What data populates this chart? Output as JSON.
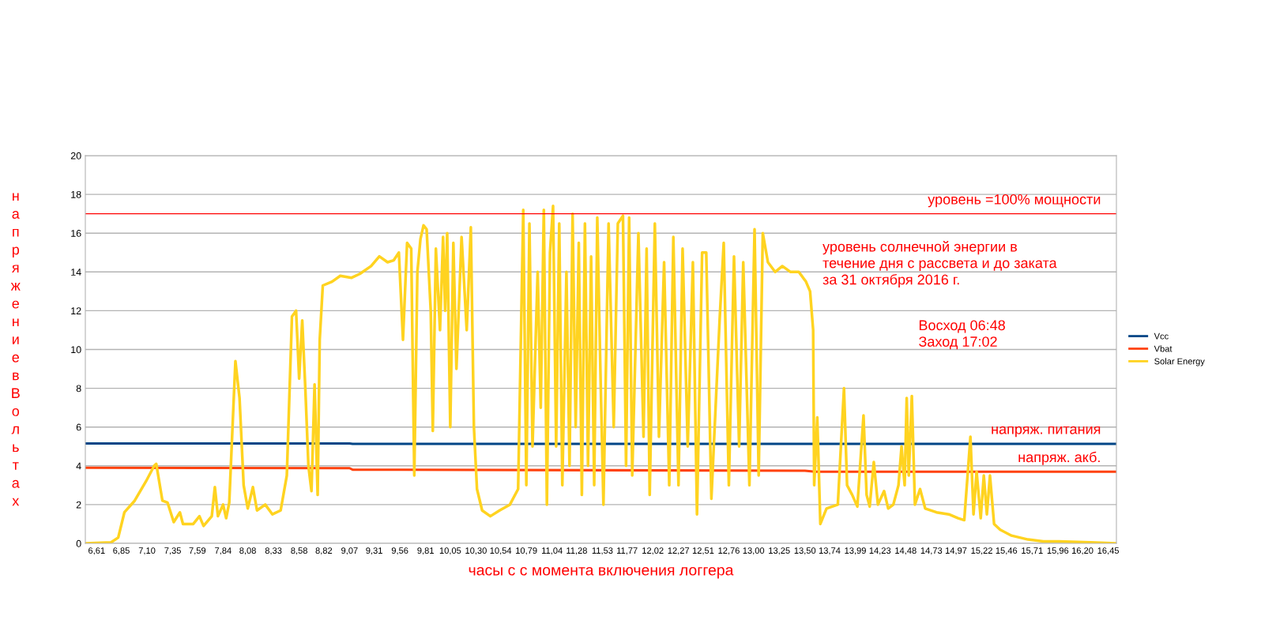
{
  "chart_data": {
    "type": "line",
    "xlabel": "часы с с момента включения логгера",
    "ylabel": "напряжение в Вольтах",
    "xlim": [
      6.5,
      16.53
    ],
    "xticks": [
      {
        "value": 6.61,
        "label": "6,61"
      },
      {
        "value": 6.85,
        "label": "6,85"
      },
      {
        "value": 7.1,
        "label": "7,10"
      },
      {
        "value": 7.35,
        "label": "7,35"
      },
      {
        "value": 7.59,
        "label": "7,59"
      },
      {
        "value": 7.84,
        "label": "7,84"
      },
      {
        "value": 8.08,
        "label": "8,08"
      },
      {
        "value": 8.33,
        "label": "8,33"
      },
      {
        "value": 8.58,
        "label": "8,58"
      },
      {
        "value": 8.82,
        "label": "8,82"
      },
      {
        "value": 9.07,
        "label": "9,07"
      },
      {
        "value": 9.31,
        "label": "9,31"
      },
      {
        "value": 9.56,
        "label": "9,56"
      },
      {
        "value": 9.81,
        "label": "9,81"
      },
      {
        "value": 10.05,
        "label": "10,05"
      },
      {
        "value": 10.3,
        "label": "10,30"
      },
      {
        "value": 10.54,
        "label": "10,54"
      },
      {
        "value": 10.79,
        "label": "10,79"
      },
      {
        "value": 11.04,
        "label": "11,04"
      },
      {
        "value": 11.28,
        "label": "11,28"
      },
      {
        "value": 11.53,
        "label": "11,53"
      },
      {
        "value": 11.77,
        "label": "11,77"
      },
      {
        "value": 12.02,
        "label": "12,02"
      },
      {
        "value": 12.27,
        "label": "12,27"
      },
      {
        "value": 12.51,
        "label": "12,51"
      },
      {
        "value": 12.76,
        "label": "12,76"
      },
      {
        "value": 13.0,
        "label": "13,00"
      },
      {
        "value": 13.25,
        "label": "13,25"
      },
      {
        "value": 13.5,
        "label": "13,50"
      },
      {
        "value": 13.74,
        "label": "13,74"
      },
      {
        "value": 13.99,
        "label": "13,99"
      },
      {
        "value": 14.23,
        "label": "14,23"
      },
      {
        "value": 14.48,
        "label": "14,48"
      },
      {
        "value": 14.73,
        "label": "14,73"
      },
      {
        "value": 14.97,
        "label": "14,97"
      },
      {
        "value": 15.22,
        "label": "15,22"
      },
      {
        "value": 15.46,
        "label": "15,46"
      },
      {
        "value": 15.71,
        "label": "15,71"
      },
      {
        "value": 15.96,
        "label": "15,96"
      },
      {
        "value": 16.2,
        "label": "16,20"
      },
      {
        "value": 16.45,
        "label": "16,45"
      }
    ],
    "ylim": [
      0,
      20
    ],
    "yticks": [
      0,
      2,
      4,
      6,
      8,
      10,
      12,
      14,
      16,
      18,
      20
    ],
    "grid": "y",
    "legend": "right",
    "series": [
      {
        "name": "Vcc",
        "color": "#004586",
        "x": [
          6.5,
          9.07,
          9.1,
          16.53
        ],
        "values": [
          5.15,
          5.15,
          5.13,
          5.13
        ]
      },
      {
        "name": "Vbat",
        "color": "#ff420e",
        "x": [
          6.5,
          9.07,
          9.1,
          13.5,
          13.6,
          16.53
        ],
        "values": [
          3.9,
          3.88,
          3.8,
          3.75,
          3.7,
          3.7
        ]
      },
      {
        "name": "Solar Energy",
        "color": "#ffd320",
        "x": [
          6.5,
          6.75,
          6.82,
          6.88,
          6.98,
          7.09,
          7.17,
          7.19,
          7.25,
          7.3,
          7.36,
          7.42,
          7.45,
          7.55,
          7.61,
          7.65,
          7.73,
          7.76,
          7.79,
          7.84,
          7.87,
          7.9,
          7.94,
          7.96,
          8.0,
          8.04,
          8.08,
          8.13,
          8.17,
          8.25,
          8.32,
          8.4,
          8.46,
          8.51,
          8.55,
          8.58,
          8.61,
          8.64,
          8.67,
          8.7,
          8.73,
          8.76,
          8.78,
          8.81,
          8.9,
          8.98,
          9.09,
          9.17,
          9.28,
          9.36,
          9.44,
          9.5,
          9.55,
          9.59,
          9.63,
          9.67,
          9.7,
          9.73,
          9.76,
          9.79,
          9.82,
          9.86,
          9.88,
          9.91,
          9.95,
          9.98,
          10.0,
          10.02,
          10.05,
          10.08,
          10.11,
          10.16,
          10.21,
          10.25,
          10.28,
          10.31,
          10.36,
          10.44,
          10.53,
          10.63,
          10.71,
          10.76,
          10.79,
          10.82,
          10.85,
          10.9,
          10.93,
          10.96,
          10.99,
          11.02,
          11.05,
          11.08,
          11.11,
          11.14,
          11.18,
          11.21,
          11.24,
          11.27,
          11.3,
          11.33,
          11.36,
          11.39,
          11.42,
          11.45,
          11.48,
          11.51,
          11.54,
          11.59,
          11.64,
          11.68,
          11.73,
          11.76,
          11.79,
          11.82,
          11.88,
          11.93,
          11.96,
          11.99,
          12.04,
          12.08,
          12.13,
          12.18,
          12.22,
          12.27,
          12.31,
          12.36,
          12.41,
          12.45,
          12.5,
          12.54,
          12.59,
          12.67,
          12.71,
          12.76,
          12.81,
          12.86,
          12.9,
          12.96,
          13.01,
          13.05,
          13.09,
          13.14,
          13.21,
          13.28,
          13.36,
          13.44,
          13.51,
          13.55,
          13.58,
          13.59,
          13.62,
          13.65,
          13.71,
          13.82,
          13.88,
          13.91,
          13.96,
          14.01,
          14.07,
          14.1,
          14.13,
          14.17,
          14.21,
          14.27,
          14.31,
          14.36,
          14.41,
          14.44,
          14.47,
          14.49,
          14.51,
          14.54,
          14.57,
          14.62,
          14.67,
          14.78,
          14.9,
          14.99,
          15.05,
          15.11,
          15.14,
          15.17,
          15.21,
          15.24,
          15.27,
          15.3,
          15.34,
          15.4,
          15.51,
          15.67,
          15.82,
          15.97,
          16.28,
          16.53
        ],
        "values": [
          0,
          0.05,
          0.3,
          1.6,
          2.2,
          3.2,
          4.0,
          4.1,
          2.2,
          2.1,
          1.1,
          1.6,
          1.0,
          1.0,
          1.4,
          0.9,
          1.4,
          2.9,
          1.4,
          2.0,
          1.3,
          2.1,
          7.0,
          9.4,
          7.5,
          3.0,
          1.8,
          2.9,
          1.7,
          2.0,
          1.5,
          1.7,
          3.5,
          11.7,
          12.0,
          8.5,
          11.5,
          8.0,
          4.0,
          2.7,
          8.2,
          2.5,
          10.5,
          13.3,
          13.5,
          13.8,
          13.7,
          13.9,
          14.3,
          14.8,
          14.5,
          14.6,
          15.0,
          10.5,
          15.5,
          15.2,
          3.5,
          14.0,
          15.7,
          16.4,
          16.2,
          12.0,
          5.8,
          15.2,
          11.0,
          15.8,
          12.0,
          16.0,
          6.0,
          15.5,
          9.0,
          15.8,
          11.0,
          16.3,
          6.0,
          2.8,
          1.7,
          1.4,
          1.7,
          2.0,
          2.8,
          17.2,
          3.0,
          16.5,
          5.0,
          14.0,
          7.0,
          17.2,
          2.0,
          15.0,
          17.4,
          5.0,
          16.5,
          3.0,
          14.0,
          4.0,
          17.0,
          6.0,
          15.5,
          2.5,
          16.5,
          4.0,
          14.8,
          3.0,
          16.8,
          9.0,
          2.0,
          16.5,
          6.0,
          16.5,
          16.9,
          4.0,
          16.8,
          3.5,
          16.0,
          5.5,
          15.2,
          2.5,
          16.5,
          5.5,
          14.5,
          3.0,
          15.8,
          3.0,
          15.2,
          5.0,
          14.5,
          1.5,
          15.0,
          15.0,
          2.3,
          11.5,
          15.5,
          3.0,
          14.8,
          5.0,
          14.5,
          3.0,
          16.2,
          3.5,
          16.0,
          14.5,
          14.0,
          14.3,
          14.0,
          14.0,
          13.5,
          13.0,
          11.0,
          3.0,
          6.5,
          1.0,
          1.8,
          2.0,
          8.0,
          3.0,
          2.5,
          1.9,
          6.6,
          2.5,
          1.9,
          4.2,
          2.0,
          2.7,
          1.8,
          2.0,
          3.0,
          5.0,
          3.0,
          7.5,
          3.5,
          7.6,
          2.0,
          2.8,
          1.8,
          1.6,
          1.5,
          1.3,
          1.2,
          5.5,
          1.5,
          3.7,
          1.3,
          3.5,
          1.5,
          3.5,
          1.0,
          0.7,
          0.4,
          0.2,
          0.1,
          0.1,
          0.05,
          0
        ]
      }
    ],
    "ref_lines": [
      {
        "axis": "y",
        "value": 17,
        "color": "#ff0000"
      }
    ],
    "annotations": [
      {
        "text": "уровень =100% мощности",
        "y": 17
      },
      "уровень солнечной энергии в\nтечение дня с рассвета и до заката\nза 31 октября 2016 г.",
      "Восход 06:48\nЗаход 17:02",
      {
        "text": "напряж. питания",
        "y": 5.15
      },
      {
        "text": "напряж. акб.",
        "y": 3.7
      }
    ]
  }
}
